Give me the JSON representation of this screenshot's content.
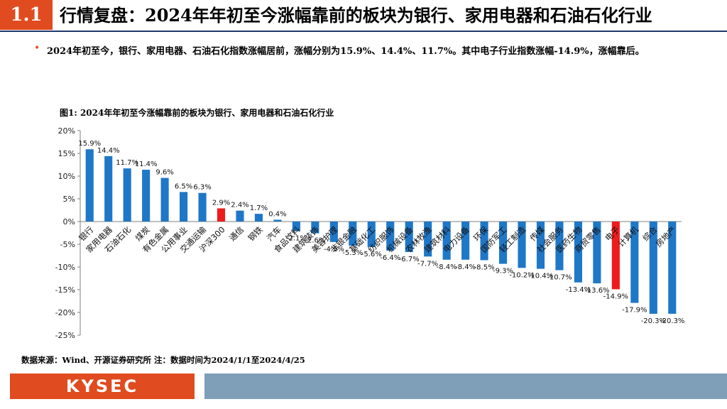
{
  "header": {
    "section_number": "1.1",
    "title": "行情复盘：2024年年初至今涨幅靠前的板块为银行、家用电器和石油石化行业"
  },
  "summary": {
    "bullet": "•",
    "text": "2024年初至今，银行、家用电器、石油石化指数涨幅居前，涨幅分别为15.9%、14.4%、11.7%。其中电子行业指数涨幅-14.9%，涨幅靠后。"
  },
  "figure": {
    "title": "图1:  2024年年初至今涨幅靠前的板块为银行、家用电器和石油石化行业"
  },
  "chart_data": {
    "type": "bar",
    "title": "图1:  2024年年初至今涨幅靠前的板块为银行、家用电器和石油石化行业",
    "categories": [
      "银行",
      "家用电器",
      "石油石化",
      "煤炭",
      "有色金属",
      "公用事业",
      "交通运输",
      "沪深300",
      "通信",
      "钢铁",
      "汽车",
      "食品饮料",
      "建筑装饰",
      "美容护理",
      "非银金融",
      "基础化工",
      "纺织服饰",
      "机械设备",
      "农林牧渔",
      "建筑材料",
      "电力设备",
      "环保",
      "国防军工",
      "轻工制造",
      "传媒",
      "社会服务",
      "医药生物",
      "商贸零售",
      "电子",
      "计算机",
      "综合",
      "房地产"
    ],
    "values": [
      15.9,
      14.4,
      11.7,
      11.4,
      9.6,
      6.5,
      6.3,
      2.9,
      2.4,
      1.7,
      0.4,
      -2.1,
      -2.6,
      -4.5,
      -5.3,
      -5.6,
      -6.4,
      -6.7,
      -7.7,
      -8.4,
      -8.4,
      -8.5,
      -9.3,
      -10.2,
      -10.4,
      -10.7,
      -13.4,
      -13.6,
      -14.9,
      -17.9,
      -20.3,
      -20.3
    ],
    "value_labels": [
      "15.9%",
      "14.4%",
      "11.7%",
      "11.4%",
      "9.6%",
      "6.5%",
      "6.3%",
      "2.9%",
      "2.4%",
      "1.7%",
      "0.4%",
      "-2.1%",
      "-2.6%",
      "-4.5%",
      "-5.3%",
      "-5.6%",
      "-6.4%",
      "-6.7%",
      "-7.7%",
      "-8.4%",
      "-8.4%",
      "-8.5%",
      "-9.3%",
      "-10.2%",
      "-10.4%",
      "-10.7%",
      "-13.4%",
      "-13.6%",
      "-14.9%",
      "-17.9%",
      "-20.3%",
      "-20.3%"
    ],
    "highlight": [
      "沪深300",
      "电子"
    ],
    "ylim": [
      -25,
      20
    ],
    "yticks": [
      20,
      15,
      10,
      5,
      0,
      -5,
      -10,
      -15,
      -20,
      -25
    ],
    "ytick_labels": [
      "20%",
      "15%",
      "10%",
      "5%",
      "0%",
      "-5%",
      "-10%",
      "-15%",
      "-20%",
      "-25%"
    ],
    "xlabel": "",
    "ylabel": "",
    "colors": {
      "bar": "#1f77c8",
      "highlight": "#ee1c1c",
      "axis": "#7f7f7f"
    }
  },
  "source": "数据来源：Wind、开源证券研究所 注：数据时间为2024/1/1至2024/4/25",
  "footer": {
    "logo": "KYSEC"
  }
}
